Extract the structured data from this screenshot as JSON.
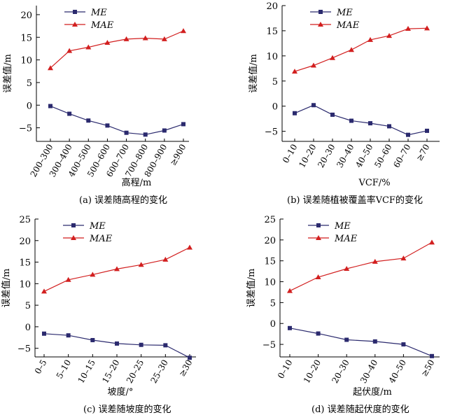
{
  "colors": {
    "me": "#2b2a6e",
    "mae": "#d21f1f"
  },
  "chart_data": [
    {
      "type": "line",
      "xlabel": "高程/m",
      "ylabel": "误差值/m",
      "caption": "(a) 误差随高程的变化",
      "ylim": [
        -8,
        22
      ],
      "yticks": [
        -5,
        0,
        5,
        10,
        15,
        20
      ],
      "categories": [
        "200–300",
        "300–400",
        "400–500",
        "500–600",
        "600–700",
        "700–800",
        "800–900",
        "≥900"
      ],
      "series": [
        {
          "name": "ME",
          "values": [
            -0.2,
            -1.9,
            -3.4,
            -4.5,
            -6.1,
            -6.5,
            -5.6,
            -4.2
          ]
        },
        {
          "name": "MAE",
          "values": [
            8.2,
            12.0,
            12.8,
            13.8,
            14.6,
            14.8,
            14.6,
            16.4
          ]
        }
      ]
    },
    {
      "type": "line",
      "xlabel": "VCF/%",
      "ylabel": "误差值/m",
      "caption": "(b) 误差随植被覆盖率VCF的变化",
      "ylim": [
        -7,
        20
      ],
      "yticks": [
        -5,
        0,
        5,
        10,
        15,
        20
      ],
      "categories": [
        "0–10",
        "10–20",
        "20–30",
        "30–40",
        "40–50",
        "50–60",
        "60–70",
        "≥70"
      ],
      "series": [
        {
          "name": "ME",
          "values": [
            -1.4,
            0.2,
            -1.7,
            -2.9,
            -3.4,
            -4.0,
            -5.7,
            -4.9
          ]
        },
        {
          "name": "MAE",
          "values": [
            6.9,
            8.1,
            9.6,
            11.2,
            13.2,
            14.0,
            15.4,
            15.5
          ]
        }
      ]
    },
    {
      "type": "line",
      "xlabel": "坡度/°",
      "ylabel": "误差值/m",
      "caption": "(c) 误差随坡度的变化",
      "ylim": [
        -7,
        25
      ],
      "yticks": [
        -5,
        0,
        5,
        10,
        15,
        20,
        25
      ],
      "categories": [
        "0–5",
        "5–10",
        "10–15",
        "15–20",
        "20–25",
        "25–30",
        "≥30"
      ],
      "series": [
        {
          "name": "ME",
          "values": [
            -1.6,
            -2.0,
            -3.1,
            -3.9,
            -4.2,
            -4.3,
            -7.2
          ]
        },
        {
          "name": "MAE",
          "values": [
            8.2,
            10.9,
            12.1,
            13.4,
            14.4,
            15.6,
            18.4
          ]
        }
      ]
    },
    {
      "type": "line",
      "xlabel": "起伏度/m",
      "ylabel": "误差值/m",
      "caption": "(d) 误差随起伏度的变化",
      "ylim": [
        -8,
        25
      ],
      "yticks": [
        -5,
        0,
        5,
        10,
        15,
        20,
        25
      ],
      "categories": [
        "0–10",
        "10–20",
        "20–30",
        "30–40",
        "40–50",
        "≥50"
      ],
      "series": [
        {
          "name": "ME",
          "values": [
            -1.1,
            -2.4,
            -3.9,
            -4.3,
            -5.0,
            -7.8
          ]
        },
        {
          "name": "MAE",
          "values": [
            7.8,
            11.1,
            13.1,
            14.8,
            15.6,
            19.4
          ]
        }
      ]
    }
  ]
}
